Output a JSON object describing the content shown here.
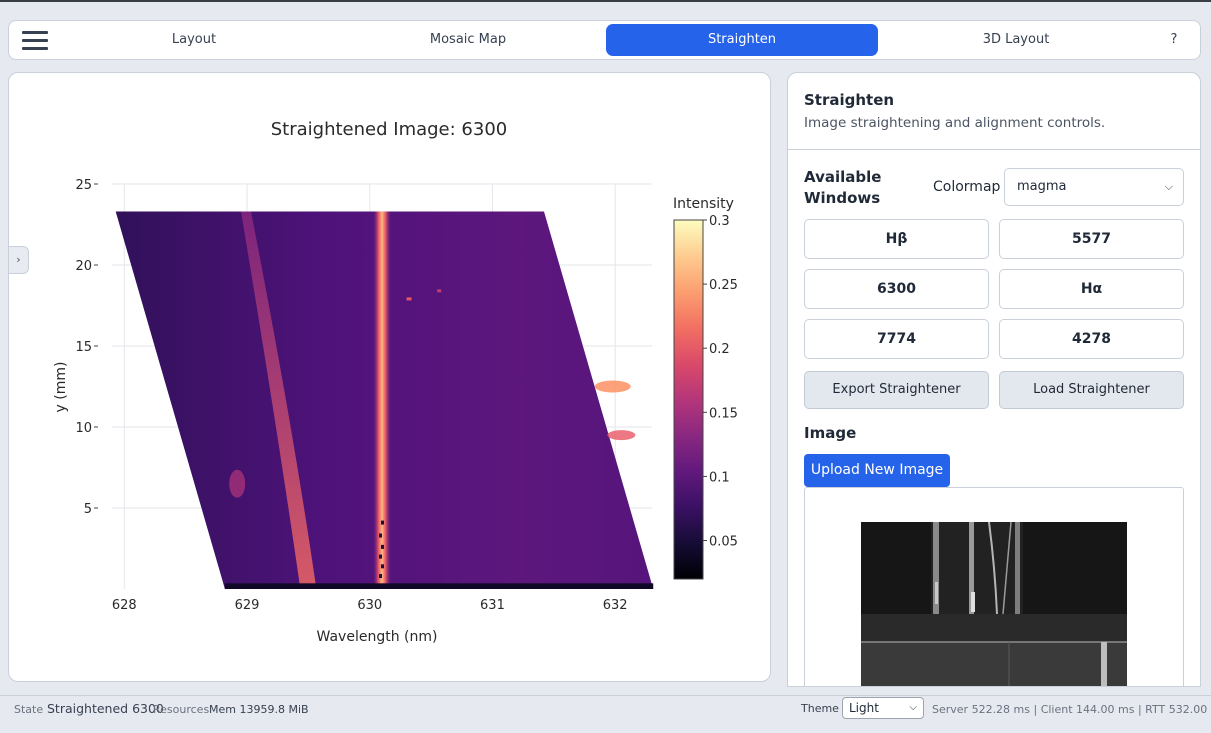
{
  "nav": {
    "tabs": [
      {
        "label": "Layout",
        "active": false
      },
      {
        "label": "Mosaic Map",
        "active": false
      },
      {
        "label": "Straighten",
        "active": true
      },
      {
        "label": "3D Layout",
        "active": false
      },
      {
        "label": "?",
        "active": false
      }
    ]
  },
  "collapse_glyph": "›",
  "panel": {
    "title": "Straighten",
    "subtitle": "Image straightening and alignment controls.",
    "windows_label_1": "Available",
    "windows_label_2": "Windows",
    "colormap_label": "Colormap",
    "colormap_value": "magma",
    "windows": [
      "Hβ",
      "5577",
      "6300",
      "Hα",
      "7774",
      "4278"
    ],
    "export_label": "Export Straightener",
    "load_label": "Load Straightener",
    "image_label": "Image",
    "upload_label": "Upload New Image"
  },
  "status": {
    "state_label": "State",
    "state_value": "Straightened 6300",
    "resources_label": "Resources",
    "mem": "Mem 13959.8 MiB",
    "theme_label": "Theme",
    "theme_value": "Light",
    "timing": "Server 522.28 ms | Client 144.00 ms | RTT 532.00 ms"
  },
  "colors": {
    "accent": "#2563eb",
    "panel_bg": "#ffffff",
    "page_bg": "#e6eaf0"
  },
  "chart_data": {
    "type": "heatmap",
    "title": "Straightened Image: 6300",
    "xlabel": "Wavelength (nm)",
    "ylabel": "y (mm)",
    "xlim": [
      627.9,
      632.3
    ],
    "ylim": [
      0,
      25
    ],
    "xticks": [
      628,
      629,
      630,
      631,
      632
    ],
    "yticks": [
      5,
      10,
      15,
      20,
      25
    ],
    "grid": true,
    "colormap": "magma",
    "colorbar": {
      "title": "Intensity",
      "range": [
        0.02,
        0.3
      ],
      "ticks": [
        0.05,
        0.1,
        0.15,
        0.2,
        0.25,
        0.3
      ]
    },
    "data_extent": {
      "x_min_top": 627.93,
      "x_min_bottom": 628.82,
      "x_max_top": 631.42,
      "x_max_bottom": 632.31,
      "y_min": 0,
      "y_max": 23.3
    },
    "features": [
      {
        "name": "emission line",
        "x_center": 630.1,
        "value": 0.26
      },
      {
        "name": "curved line",
        "x_top": 629.0,
        "x_bottom": 629.5,
        "value": 0.21
      }
    ],
    "background_value": 0.09
  }
}
